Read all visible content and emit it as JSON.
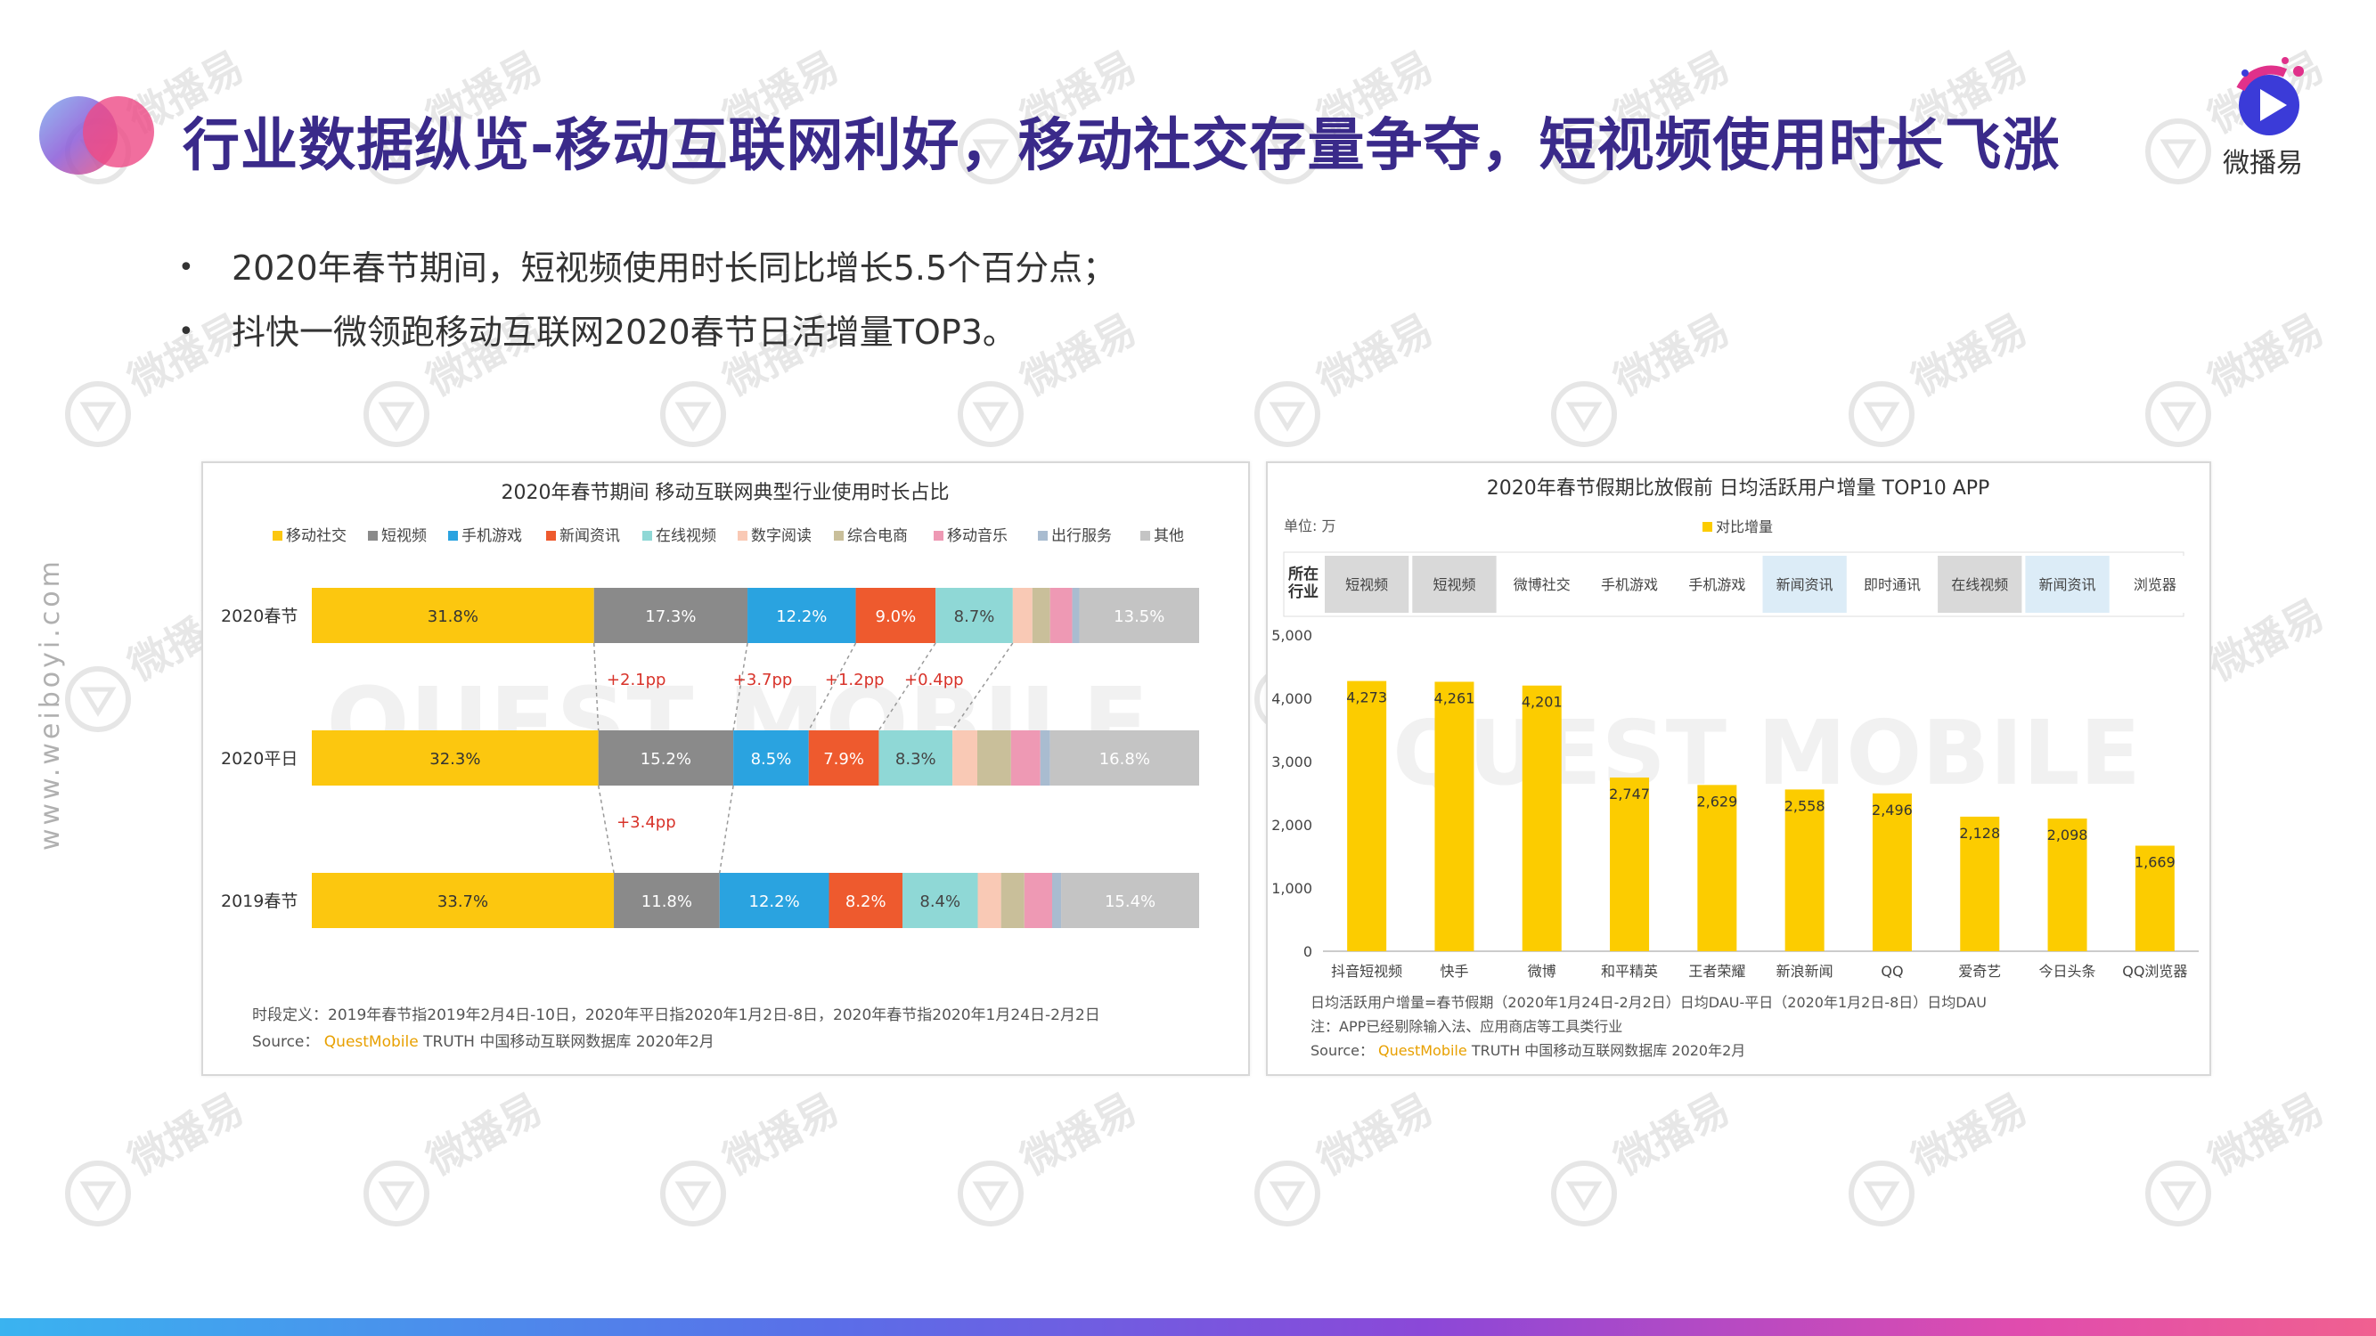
{
  "slide": {
    "title": "行业数据纵览-移动互联网利好，移动社交存量争夺，短视频使用时长飞涨",
    "bullets": [
      "2020年春节期间，短视频使用时长同比增长5.5个百分点；",
      "抖快一微领跑移动互联网2020春节日活增量TOP3。"
    ],
    "logo_text": "微播易",
    "side_text": "www.weiboyi.com",
    "watermark_text": "微播易",
    "bg_watermark": "QUEST MOBILE",
    "colors": {
      "title": "#3a2a8a",
      "accent_yellow": "#fccc00",
      "brand_pink": "#e0318a",
      "brand_blue": "#3b5bdb"
    }
  },
  "chart_data": [
    {
      "type": "bar",
      "orientation": "horizontal-stacked-percent",
      "title": "2020年春节期间 移动互联网典型行业使用时长占比",
      "legend": [
        "移动社交",
        "短视频",
        "手机游戏",
        "新闻资讯",
        "在线视频",
        "数字阅读",
        "综合电商",
        "移动音乐",
        "出行服务",
        "其他"
      ],
      "legend_position": "top",
      "colors": [
        "#fcc70f",
        "#8a8a8a",
        "#2aa3e0",
        "#ee5a2e",
        "#8fd8d6",
        "#f9c9b5",
        "#c9bf9a",
        "#ee99b4",
        "#a9bcd0",
        "#c4c4c4"
      ],
      "categories": [
        "2020春节",
        "2020平日",
        "2019春节"
      ],
      "series": [
        {
          "name": "移动社交",
          "values": [
            31.8,
            32.3,
            33.7
          ]
        },
        {
          "name": "短视频",
          "values": [
            17.3,
            15.2,
            11.8
          ]
        },
        {
          "name": "手机游戏",
          "values": [
            12.2,
            8.5,
            12.2
          ]
        },
        {
          "name": "新闻资讯",
          "values": [
            9.0,
            7.9,
            8.2
          ]
        },
        {
          "name": "在线视频",
          "values": [
            8.7,
            8.3,
            8.4
          ]
        },
        {
          "name": "数字阅读",
          "values": [
            2.2,
            2.8,
            2.6
          ]
        },
        {
          "name": "综合电商",
          "values": [
            2.0,
            3.8,
            2.6
          ]
        },
        {
          "name": "移动音乐",
          "values": [
            2.5,
            3.3,
            3.1
          ]
        },
        {
          "name": "出行服务",
          "values": [
            0.8,
            1.1,
            1.0
          ]
        },
        {
          "name": "其他",
          "values": [
            13.5,
            16.8,
            15.4
          ]
        }
      ],
      "bar_labels": [
        [
          "31.8%",
          "17.3%",
          "12.2%",
          "9.0%",
          "8.7%",
          "",
          "",
          "",
          "",
          "13.5%"
        ],
        [
          "32.3%",
          "15.2%",
          "8.5%",
          "7.9%",
          "8.3%",
          "",
          "",
          "",
          "",
          "16.8%"
        ],
        [
          "33.7%",
          "11.8%",
          "12.2%",
          "8.2%",
          "8.4%",
          "",
          "",
          "",
          "",
          "15.4%"
        ]
      ],
      "annotations": {
        "between_0_1": [
          "+2.1pp",
          "+3.7pp",
          "+1.2pp",
          "+0.4pp"
        ],
        "between_1_2": [
          "+3.4pp"
        ]
      },
      "notes": [
        "时段定义：2019年春节指2019年2月4日-10日，2020年平日指2020年1月2日-8日，2020年春节指2020年1月24日-2月2日"
      ],
      "source_prefix": "Source：",
      "source_brand": "QuestMobile",
      "source_rest": "TRUTH 中国移动互联网数据库 2020年2月"
    },
    {
      "type": "bar",
      "title": "2020年春节假期比放假前 日均活跃用户增量 TOP10 APP",
      "unit_label": "单位: 万",
      "legend": [
        "对比增量"
      ],
      "legend_position": "top",
      "industry_header": "所在\n行业",
      "industries": [
        "短视频",
        "短视频",
        "微博社交",
        "手机游戏",
        "手机游戏",
        "新闻资讯",
        "即时通讯",
        "在线视频",
        "新闻资讯",
        "浏览器"
      ],
      "categories": [
        "抖音短视频",
        "快手",
        "微博",
        "和平精英",
        "王者荣耀",
        "新浪新闻",
        "QQ",
        "爱奇艺",
        "今日头条",
        "QQ浏览器"
      ],
      "values": [
        4273,
        4261,
        4201,
        2747,
        2629,
        2558,
        2496,
        2128,
        2098,
        1669
      ],
      "value_labels": [
        "4,273",
        "4,261",
        "4,201",
        "2,747",
        "2,629",
        "2,558",
        "2,496",
        "2,128",
        "2,098",
        "1,669"
      ],
      "ylim": [
        0,
        5000
      ],
      "yticks": [
        0,
        1000,
        2000,
        3000,
        4000,
        5000
      ],
      "ytick_labels": [
        "0",
        "1,000",
        "2,000",
        "3,000",
        "4,000",
        "5,000"
      ],
      "bar_color": "#fccc00",
      "notes": [
        "日均活跃用户增量=春节假期（2020年1月24日-2月2日）日均DAU-平日（2020年1月2日-8日）日均DAU",
        "注：APP已经剔除输入法、应用商店等工具类行业"
      ],
      "source_prefix": "Source：",
      "source_brand": "QuestMobile",
      "source_rest": "TRUTH 中国移动互联网数据库 2020年2月"
    }
  ]
}
